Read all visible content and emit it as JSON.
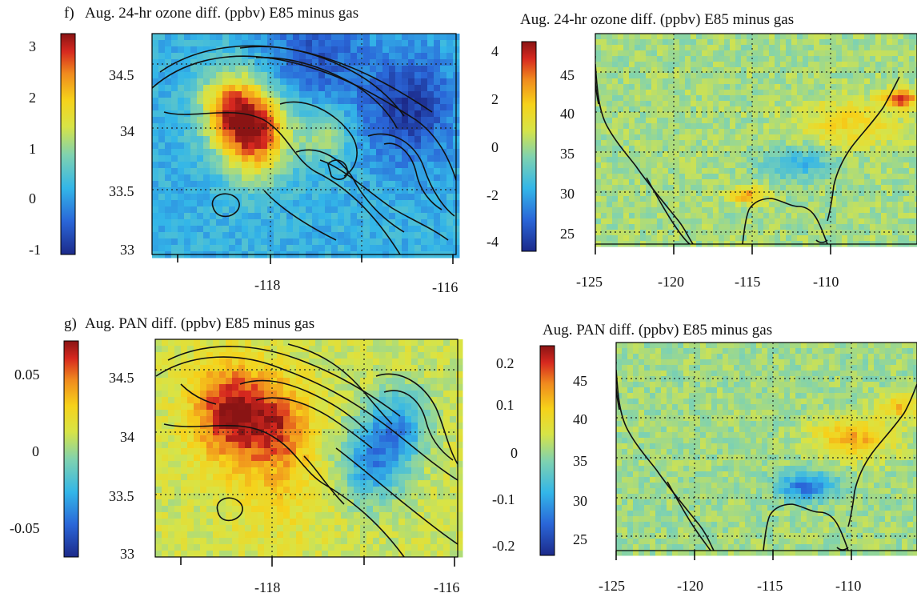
{
  "chart_data": [
    {
      "type": "heatmap",
      "panel_label": "f)",
      "title": "Aug. 24-hr ozone diff. (ppbv) E85 minus gas",
      "colorbar_ticks": [
        "3",
        "2",
        "1",
        "0",
        "-1"
      ],
      "colorbar_range": [
        -1.1,
        3.2
      ],
      "y_ticks": [
        "34.5",
        "34",
        "33.5",
        "33"
      ],
      "x_ticks": [
        "-118",
        "-116"
      ],
      "xlim": [
        -119.1,
        -115.9
      ],
      "ylim": [
        33.0,
        34.8
      ],
      "background_value": 0.2,
      "hotspots": [
        {
          "lon": -118.0,
          "lat": 34.0,
          "value": 3.0,
          "spread": 0.35
        },
        {
          "lon": -118.3,
          "lat": 34.2,
          "value": 2.0,
          "spread": 0.3
        },
        {
          "lon": -117.3,
          "lat": 34.0,
          "value": 1.2,
          "spread": 0.25
        }
      ],
      "coldspots": [
        {
          "lon": -116.4,
          "lat": 34.2,
          "value": -0.9,
          "spread": 0.45
        },
        {
          "lon": -117.4,
          "lat": 34.6,
          "value": -0.6,
          "spread": 0.5
        }
      ],
      "grid": true
    },
    {
      "type": "heatmap",
      "title": "Aug. 24-hr ozone diff. (ppbv) E85 minus gas",
      "colorbar_ticks": [
        "4",
        "2",
        "0",
        "-2",
        "-4"
      ],
      "colorbar_range": [
        -4.6,
        4.5
      ],
      "y_ticks": [
        "45",
        "40",
        "35",
        "30",
        "25"
      ],
      "x_ticks": [
        "-125",
        "-120",
        "-115",
        "-110"
      ],
      "xlim": [
        -125,
        -106
      ],
      "ylim": [
        23,
        49
      ],
      "background_value": 0.0,
      "hotspots": [
        {
          "lon": -107,
          "lat": 41,
          "value": 4.0,
          "spread": 1.0
        },
        {
          "lon": -110,
          "lat": 38,
          "value": 1.5,
          "spread": 3.0
        },
        {
          "lon": -116,
          "lat": 29,
          "value": 2.5,
          "spread": 1.0
        }
      ],
      "coldspots": [
        {
          "lon": -113,
          "lat": 33,
          "value": -1.8,
          "spread": 2.0
        }
      ],
      "grid": true
    },
    {
      "type": "heatmap",
      "panel_label": "g)",
      "title": "Aug. PAN diff. (ppbv) E85 minus gas",
      "colorbar_ticks": [
        "0.05",
        "0",
        "-0.05"
      ],
      "colorbar_range": [
        -0.075,
        0.075
      ],
      "y_ticks": [
        "34.5",
        "34",
        "33.5",
        "33"
      ],
      "x_ticks": [
        "-118",
        "-116"
      ],
      "xlim": [
        -119.1,
        -115.9
      ],
      "ylim": [
        33.0,
        34.8
      ],
      "background_value": 0.01,
      "hotspots": [
        {
          "lon": -118.3,
          "lat": 34.2,
          "value": 0.07,
          "spread": 0.4
        },
        {
          "lon": -117.8,
          "lat": 34.1,
          "value": 0.05,
          "spread": 0.35
        },
        {
          "lon": -117.8,
          "lat": 33.6,
          "value": 0.025,
          "spread": 0.5
        }
      ],
      "coldspots": [
        {
          "lon": -116.8,
          "lat": 33.8,
          "value": -0.04,
          "spread": 0.35
        },
        {
          "lon": -116.5,
          "lat": 34.1,
          "value": -0.03,
          "spread": 0.3
        }
      ],
      "grid": true
    },
    {
      "type": "heatmap",
      "title": "Aug. PAN diff. (ppbv) E85 minus gas",
      "colorbar_ticks": [
        "0.2",
        "0.1",
        "0",
        "-0.1",
        "-0.2"
      ],
      "colorbar_range": [
        -0.23,
        0.23
      ],
      "y_ticks": [
        "45",
        "40",
        "35",
        "30",
        "25"
      ],
      "x_ticks": [
        "-125",
        "-120",
        "-115",
        "-110"
      ],
      "xlim": [
        -125,
        -106
      ],
      "ylim": [
        23,
        49
      ],
      "background_value": 0.0,
      "hotspots": [
        {
          "lon": -110,
          "lat": 37,
          "value": 0.12,
          "spread": 2.5
        },
        {
          "lon": -107,
          "lat": 41,
          "value": 0.1,
          "spread": 1.5
        }
      ],
      "coldspots": [
        {
          "lon": -113,
          "lat": 31,
          "value": -0.15,
          "spread": 1.8
        }
      ],
      "grid": true
    }
  ]
}
